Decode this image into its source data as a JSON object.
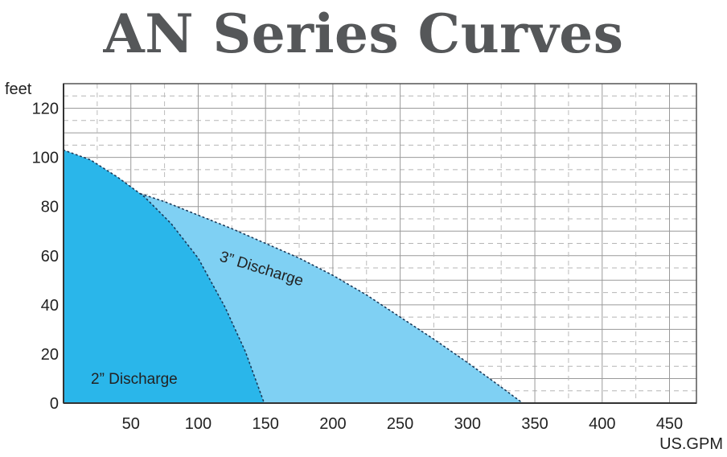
{
  "chart_data": {
    "type": "area",
    "title": "AN Series Curves",
    "xlabel": "US.GPM",
    "ylabel": "feet",
    "xlim": [
      0,
      470
    ],
    "ylim": [
      0,
      130
    ],
    "x_ticks": [
      50,
      100,
      150,
      200,
      250,
      300,
      350,
      400,
      450
    ],
    "y_ticks": [
      0,
      20,
      40,
      60,
      80,
      100,
      120
    ],
    "grid": true,
    "series": [
      {
        "name": "3” Discharge",
        "color": "#7fd0f3",
        "x": [
          0,
          25,
          50,
          75,
          100,
          125,
          150,
          175,
          200,
          225,
          250,
          275,
          300,
          325,
          341
        ],
        "y": [
          93,
          90,
          86.5,
          82,
          76.5,
          71,
          65,
          59,
          52,
          44,
          35,
          26,
          16.5,
          6.5,
          0
        ]
      },
      {
        "name": "2” Discharge",
        "color": "#2ab6ea",
        "x": [
          0,
          20,
          40,
          60,
          80,
          100,
          120,
          135,
          149
        ],
        "y": [
          103,
          99,
          92,
          84,
          73,
          59,
          39,
          21,
          0
        ]
      }
    ]
  }
}
